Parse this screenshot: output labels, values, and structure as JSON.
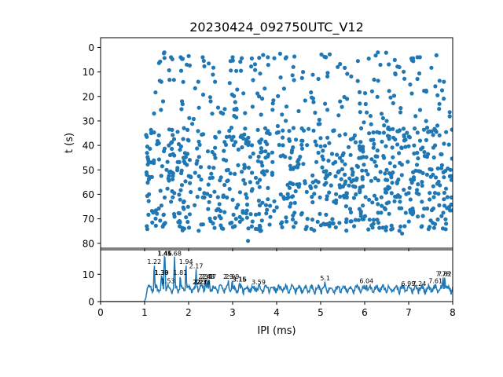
{
  "chart_data": [
    {
      "type": "scatter",
      "title": "20230424_092750UTC_V12",
      "xlabel": "",
      "ylabel": "t (s)",
      "xlim": [
        0,
        8
      ],
      "ylim": [
        82,
        -4
      ],
      "y_inverted": true,
      "yticks": [
        0,
        10,
        20,
        30,
        40,
        50,
        60,
        70,
        80
      ],
      "x_tick_labels_shown": false,
      "marker_color": "#1f77b4",
      "point_count": 1000,
      "x_range_of_points": [
        1.0,
        8.0
      ],
      "y_range_of_points": [
        2,
        79
      ],
      "description_points": [
        [
          1.45,
          2
        ],
        [
          1.6,
          4
        ],
        [
          1.82,
          4
        ],
        [
          2.32,
          4
        ],
        [
          3.0,
          4
        ],
        [
          3.8,
          4
        ],
        [
          4.22,
          4
        ],
        [
          5.12,
          4
        ],
        [
          6.3,
          2
        ],
        [
          7.2,
          4
        ],
        [
          1.38,
          14
        ],
        [
          2.22,
          14
        ],
        [
          2.6,
          14
        ],
        [
          4.6,
          10
        ],
        [
          6.7,
          11
        ],
        [
          7.8,
          14
        ],
        [
          1.42,
          22
        ],
        [
          1.85,
          22
        ],
        [
          2.5,
          22
        ],
        [
          3.6,
          20
        ],
        [
          4.5,
          26
        ],
        [
          5.1,
          23
        ],
        [
          5.6,
          21
        ],
        [
          6.5,
          30
        ],
        [
          7.4,
          18
        ],
        [
          1.15,
          35
        ],
        [
          1.55,
          40
        ],
        [
          2.0,
          38
        ],
        [
          2.6,
          41
        ],
        [
          3.2,
          36
        ],
        [
          3.75,
          45
        ],
        [
          4.35,
          42
        ],
        [
          5.0,
          37
        ],
        [
          5.5,
          44
        ],
        [
          6.2,
          41
        ],
        [
          6.9,
          38
        ],
        [
          7.6,
          40
        ],
        [
          1.05,
          52
        ],
        [
          1.5,
          50
        ],
        [
          2.05,
          53
        ],
        [
          2.45,
          56
        ],
        [
          2.9,
          50
        ],
        [
          3.4,
          55
        ],
        [
          3.9,
          52
        ],
        [
          4.4,
          49
        ],
        [
          4.95,
          55
        ],
        [
          5.4,
          51
        ],
        [
          5.95,
          53
        ],
        [
          6.5,
          50
        ],
        [
          7.05,
          54
        ],
        [
          7.55,
          52
        ],
        [
          7.95,
          50
        ],
        [
          1.1,
          60
        ],
        [
          1.6,
          63
        ],
        [
          2.2,
          61
        ],
        [
          2.7,
          64
        ],
        [
          3.3,
          60
        ],
        [
          3.8,
          62
        ],
        [
          4.3,
          65
        ],
        [
          4.8,
          61
        ],
        [
          5.3,
          63
        ],
        [
          5.8,
          60
        ],
        [
          6.3,
          64
        ],
        [
          6.8,
          61
        ],
        [
          7.3,
          63
        ],
        [
          7.8,
          62
        ],
        [
          1.05,
          73
        ],
        [
          1.45,
          72
        ],
        [
          1.9,
          74
        ],
        [
          2.5,
          71
        ],
        [
          3.05,
          73
        ],
        [
          3.6,
          68
        ],
        [
          4.1,
          72
        ],
        [
          4.7,
          70
        ],
        [
          5.2,
          73
        ],
        [
          5.7,
          71
        ],
        [
          6.2,
          72
        ],
        [
          6.85,
          76
        ],
        [
          7.3,
          73
        ],
        [
          7.85,
          72
        ],
        [
          3.35,
          79
        ]
      ]
    },
    {
      "type": "line",
      "xlabel": "IPI (ms)",
      "ylabel": "",
      "xlim": [
        0,
        8
      ],
      "ylim": [
        0,
        19
      ],
      "xticks": [
        0,
        1,
        2,
        3,
        4,
        5,
        6,
        7,
        8
      ],
      "yticks": [
        0,
        10
      ],
      "line_color": "#1f77b4",
      "baseline_until_x": 1.0,
      "peaks": [
        {
          "x": 1.22,
          "y": 13.5,
          "label": "1.22"
        },
        {
          "x": 1.38,
          "y": 9.5,
          "label": "1.38"
        },
        {
          "x": 1.39,
          "y": 9.5,
          "label": "1.39"
        },
        {
          "x": 1.45,
          "y": 16.5,
          "label": "1.45"
        },
        {
          "x": 1.46,
          "y": 16.5,
          "label": "1.46"
        },
        {
          "x": 1.53,
          "y": 6.5,
          "label": "1.53"
        },
        {
          "x": 1.68,
          "y": 16.5,
          "label": "1.68"
        },
        {
          "x": 1.81,
          "y": 9.5,
          "label": "1.81"
        },
        {
          "x": 1.94,
          "y": 13.5,
          "label": "1.94"
        },
        {
          "x": 2.17,
          "y": 12.0,
          "label": "2.17"
        },
        {
          "x": 2.2,
          "y": 6.0,
          "label": "2.2"
        },
        {
          "x": 2.27,
          "y": 6.0,
          "label": "2.27"
        },
        {
          "x": 2.3,
          "y": 6.0,
          "label": "2.3"
        },
        {
          "x": 2.33,
          "y": 6.0,
          "label": "2.33"
        },
        {
          "x": 2.38,
          "y": 8.0,
          "label": "2.38"
        },
        {
          "x": 2.43,
          "y": 8.0,
          "label": "2.43"
        },
        {
          "x": 2.47,
          "y": 8.0,
          "label": "2.47"
        },
        {
          "x": 2.9,
          "y": 8.0,
          "label": "2.9"
        },
        {
          "x": 2.99,
          "y": 8.0,
          "label": "2.99"
        },
        {
          "x": 3.15,
          "y": 7.0,
          "label": "3.15"
        },
        {
          "x": 3.16,
          "y": 7.0,
          "label": "3.16"
        },
        {
          "x": 3.59,
          "y": 6.0,
          "label": "3.59"
        },
        {
          "x": 5.1,
          "y": 7.5,
          "label": "5.1"
        },
        {
          "x": 6.04,
          "y": 6.5,
          "label": "6.04"
        },
        {
          "x": 6.99,
          "y": 5.5,
          "label": "6.99"
        },
        {
          "x": 7.24,
          "y": 5.5,
          "label": "7.24"
        },
        {
          "x": 7.61,
          "y": 6.5,
          "label": "7.61"
        },
        {
          "x": 7.78,
          "y": 9.0,
          "label": "7.78"
        },
        {
          "x": 7.82,
          "y": 9.0,
          "label": "7.82"
        }
      ]
    }
  ]
}
